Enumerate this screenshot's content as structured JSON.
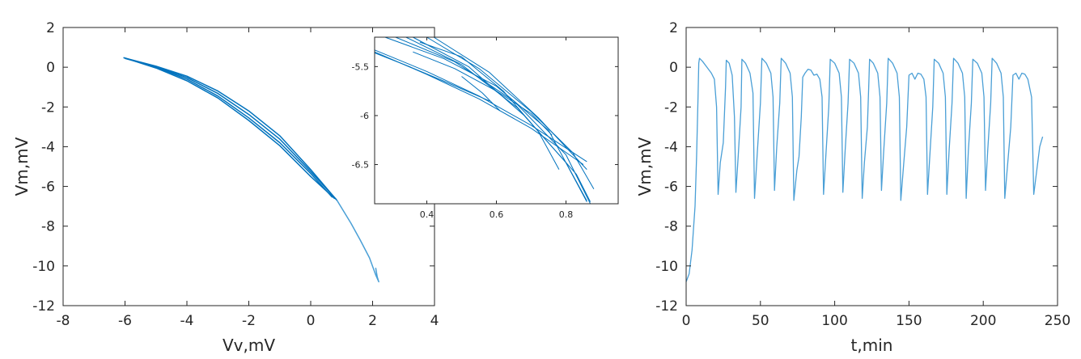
{
  "colors": {
    "line": "#0072bd",
    "line_light": "#4a9fd6",
    "axis": "#262626"
  },
  "chart_data": [
    {
      "type": "line",
      "xlabel": "Vv,mV",
      "ylabel": "Vm,mV",
      "xlim": [
        -8,
        4
      ],
      "ylim": [
        -12,
        2
      ],
      "xticks": [
        -8,
        -6,
        -4,
        -2,
        0,
        2,
        4
      ],
      "yticks": [
        -12,
        -10,
        -8,
        -6,
        -4,
        -2,
        0,
        2
      ],
      "series": [
        {
          "values": [
            [
              2.1,
              -10.1
            ],
            [
              2.15,
              -10.55
            ],
            [
              2.2,
              -10.8
            ],
            [
              2.1,
              -10.45
            ],
            [
              1.9,
              -9.6
            ],
            [
              1.6,
              -8.7
            ],
            [
              1.3,
              -7.85
            ],
            [
              0.85,
              -6.7
            ]
          ]
        },
        {
          "values": [
            [
              0.85,
              -6.7
            ],
            [
              0.0,
              -5.15
            ],
            [
              -1.0,
              -3.45
            ],
            [
              -2.0,
              -2.2
            ],
            [
              -3.0,
              -1.2
            ],
            [
              -4.0,
              -0.45
            ],
            [
              -5.0,
              0.05
            ],
            [
              -6.05,
              0.48
            ]
          ]
        },
        {
          "values": [
            [
              -6.05,
              0.48
            ],
            [
              -5.0,
              0.0
            ],
            [
              -4.0,
              -0.6
            ],
            [
              -3.0,
              -1.45
            ],
            [
              -2.0,
              -2.55
            ],
            [
              -1.0,
              -3.8
            ],
            [
              0.0,
              -5.35
            ],
            [
              0.7,
              -6.55
            ]
          ]
        },
        {
          "values": [
            [
              -6.0,
              0.46
            ],
            [
              -5.0,
              -0.04
            ],
            [
              -4.0,
              -0.68
            ],
            [
              -3.0,
              -1.55
            ],
            [
              -2.0,
              -2.68
            ],
            [
              -1.0,
              -3.95
            ],
            [
              0.0,
              -5.5
            ],
            [
              0.78,
              -6.62
            ]
          ]
        },
        {
          "values": [
            [
              -6.0,
              0.44
            ],
            [
              -5.0,
              0.02
            ],
            [
              -4.0,
              -0.52
            ],
            [
              -3.0,
              -1.32
            ],
            [
              -2.0,
              -2.38
            ],
            [
              -1.0,
              -3.62
            ],
            [
              0.0,
              -5.25
            ],
            [
              0.82,
              -6.65
            ]
          ]
        }
      ]
    },
    {
      "type": "line",
      "role": "inset",
      "xlim": [
        0.25,
        0.95
      ],
      "ylim": [
        -6.9,
        -5.2
      ],
      "xticks": [
        0.4,
        0.6,
        0.8
      ],
      "yticks": [
        -6.5,
        -6,
        -5.5
      ],
      "ytick_labels": [
        "-6.5",
        "-6",
        "-5.5"
      ],
      "series": [
        {
          "values": [
            [
              0.25,
              -5.33
            ],
            [
              0.4,
              -5.55
            ],
            [
              0.55,
              -5.8
            ],
            [
              0.7,
              -6.1
            ],
            [
              0.86,
              -6.47
            ]
          ]
        },
        {
          "values": [
            [
              0.25,
              -5.35
            ],
            [
              0.4,
              -5.58
            ],
            [
              0.55,
              -5.83
            ],
            [
              0.7,
              -6.13
            ],
            [
              0.85,
              -6.5
            ]
          ]
        },
        {
          "values": [
            [
              0.25,
              -5.36
            ],
            [
              0.35,
              -5.5
            ],
            [
              0.45,
              -5.65
            ],
            [
              0.58,
              -5.85
            ]
          ]
        },
        {
          "values": [
            [
              0.28,
              -5.2
            ],
            [
              0.45,
              -5.42
            ],
            [
              0.6,
              -5.7
            ],
            [
              0.75,
              -6.15
            ],
            [
              0.86,
              -6.88
            ]
          ]
        },
        {
          "values": [
            [
              0.31,
              -5.2
            ],
            [
              0.48,
              -5.45
            ],
            [
              0.65,
              -5.85
            ],
            [
              0.8,
              -6.4
            ],
            [
              0.87,
              -6.9
            ]
          ]
        },
        {
          "values": [
            [
              0.34,
              -5.2
            ],
            [
              0.5,
              -5.48
            ],
            [
              0.66,
              -5.92
            ],
            [
              0.8,
              -6.48
            ],
            [
              0.86,
              -6.87
            ]
          ]
        },
        {
          "values": [
            [
              0.36,
              -5.2
            ],
            [
              0.52,
              -5.5
            ],
            [
              0.68,
              -6.0
            ],
            [
              0.83,
              -6.6
            ],
            [
              0.87,
              -6.88
            ]
          ]
        },
        {
          "values": [
            [
              0.4,
              -5.2
            ],
            [
              0.55,
              -5.52
            ],
            [
              0.7,
              -5.96
            ],
            [
              0.82,
              -6.38
            ],
            [
              0.88,
              -6.75
            ]
          ]
        },
        {
          "values": [
            [
              0.42,
              -5.2
            ],
            [
              0.58,
              -5.56
            ],
            [
              0.72,
              -6.02
            ],
            [
              0.86,
              -6.55
            ]
          ]
        },
        {
          "values": [
            [
              0.36,
              -5.35
            ],
            [
              0.48,
              -5.52
            ],
            [
              0.6,
              -5.75
            ],
            [
              0.7,
              -5.98
            ],
            [
              0.76,
              -6.2
            ]
          ]
        },
        {
          "values": [
            [
              0.5,
              -5.6
            ],
            [
              0.56,
              -5.77
            ],
            [
              0.61,
              -5.95
            ]
          ]
        },
        {
          "values": [
            [
              0.38,
              -5.25
            ],
            [
              0.5,
              -5.4
            ],
            [
              0.62,
              -5.75
            ],
            [
              0.72,
              -6.16
            ],
            [
              0.78,
              -6.55
            ]
          ]
        }
      ]
    },
    {
      "type": "line",
      "xlabel": "t,min",
      "ylabel": "Vm,mV",
      "xlim": [
        0,
        250
      ],
      "ylim": [
        -12,
        2
      ],
      "xticks": [
        0,
        50,
        100,
        150,
        200,
        250
      ],
      "yticks": [
        -12,
        -10,
        -8,
        -6,
        -4,
        -2,
        0,
        2
      ],
      "series": [
        {
          "values": [
            [
              0,
              -10.8
            ],
            [
              2,
              -10.4
            ],
            [
              4,
              -9.2
            ],
            [
              6,
              -7.0
            ],
            [
              7,
              -4.5
            ],
            [
              8,
              -1.5
            ],
            [
              8.5,
              0.2
            ],
            [
              9,
              0.45
            ],
            [
              11,
              0.3
            ],
            [
              14,
              0.0
            ],
            [
              17,
              -0.3
            ],
            [
              19,
              -0.6
            ],
            [
              20.5,
              -2.0
            ],
            [
              21.5,
              -6.4
            ],
            [
              23,
              -4.8
            ],
            [
              25,
              -3.8
            ],
            [
              26.5,
              -1.0
            ],
            [
              27,
              0.35
            ],
            [
              29,
              0.2
            ],
            [
              31,
              -0.4
            ],
            [
              32.5,
              -2.5
            ],
            [
              33.5,
              -6.3
            ],
            [
              35,
              -4.5
            ],
            [
              37,
              -2.0
            ],
            [
              37.5,
              0.4
            ],
            [
              40,
              0.2
            ],
            [
              43,
              -0.3
            ],
            [
              45,
              -1.3
            ],
            [
              46,
              -6.6
            ],
            [
              48,
              -4.2
            ],
            [
              50,
              -1.8
            ],
            [
              51,
              0.45
            ],
            [
              54,
              0.2
            ],
            [
              57,
              -0.3
            ],
            [
              58.5,
              -1.5
            ],
            [
              59.5,
              -6.2
            ],
            [
              61,
              -4.0
            ],
            [
              63,
              -1.8
            ],
            [
              64,
              0.45
            ],
            [
              67,
              0.2
            ],
            [
              70,
              -0.3
            ],
            [
              71.5,
              -1.5
            ],
            [
              72.5,
              -6.7
            ],
            [
              74.5,
              -5.2
            ],
            [
              76,
              -4.5
            ],
            [
              77.5,
              -2.5
            ],
            [
              78.5,
              -0.5
            ],
            [
              80,
              -0.3
            ],
            [
              82,
              -0.1
            ],
            [
              84,
              -0.15
            ],
            [
              86,
              -0.4
            ],
            [
              88,
              -0.35
            ],
            [
              90,
              -0.6
            ],
            [
              91.5,
              -1.5
            ],
            [
              92.5,
              -6.4
            ],
            [
              94,
              -4.5
            ],
            [
              96,
              -2.0
            ],
            [
              97,
              0.4
            ],
            [
              100,
              0.2
            ],
            [
              103,
              -0.3
            ],
            [
              104.5,
              -1.5
            ],
            [
              105.5,
              -6.3
            ],
            [
              107,
              -4.2
            ],
            [
              109,
              -1.8
            ],
            [
              110,
              0.4
            ],
            [
              113,
              0.2
            ],
            [
              116,
              -0.3
            ],
            [
              117.5,
              -1.5
            ],
            [
              118.5,
              -6.6
            ],
            [
              120,
              -4.8
            ],
            [
              122,
              -3.0
            ],
            [
              123,
              -0.8
            ],
            [
              123.5,
              0.4
            ],
            [
              126,
              0.2
            ],
            [
              129,
              -0.3
            ],
            [
              130.5,
              -1.5
            ],
            [
              131.5,
              -6.2
            ],
            [
              133,
              -4.2
            ],
            [
              135,
              -1.8
            ],
            [
              136,
              0.45
            ],
            [
              139,
              0.2
            ],
            [
              142,
              -0.3
            ],
            [
              143.5,
              -1.5
            ],
            [
              144.5,
              -6.7
            ],
            [
              146.5,
              -4.8
            ],
            [
              148.5,
              -3.0
            ],
            [
              150,
              -0.4
            ],
            [
              152,
              -0.3
            ],
            [
              154,
              -0.6
            ],
            [
              156,
              -0.3
            ],
            [
              158,
              -0.35
            ],
            [
              160,
              -0.6
            ],
            [
              161.5,
              -1.5
            ],
            [
              162.5,
              -6.4
            ],
            [
              164,
              -4.5
            ],
            [
              166,
              -2.0
            ],
            [
              167,
              0.4
            ],
            [
              170,
              0.2
            ],
            [
              173,
              -0.3
            ],
            [
              174.5,
              -1.5
            ],
            [
              175.5,
              -6.4
            ],
            [
              177,
              -4.2
            ],
            [
              179,
              -1.8
            ],
            [
              180,
              0.45
            ],
            [
              183,
              0.2
            ],
            [
              186,
              -0.3
            ],
            [
              187.5,
              -1.5
            ],
            [
              188.5,
              -6.6
            ],
            [
              190,
              -4.2
            ],
            [
              192,
              -1.8
            ],
            [
              193,
              0.4
            ],
            [
              196,
              0.2
            ],
            [
              199,
              -0.3
            ],
            [
              200.5,
              -1.5
            ],
            [
              201.5,
              -6.2
            ],
            [
              203,
              -4.2
            ],
            [
              205,
              -1.8
            ],
            [
              206,
              0.45
            ],
            [
              209,
              0.2
            ],
            [
              212,
              -0.3
            ],
            [
              213.5,
              -1.5
            ],
            [
              214.5,
              -6.6
            ],
            [
              216.5,
              -4.8
            ],
            [
              218.5,
              -3.0
            ],
            [
              220,
              -0.4
            ],
            [
              222,
              -0.3
            ],
            [
              224,
              -0.6
            ],
            [
              226,
              -0.3
            ],
            [
              228,
              -0.35
            ],
            [
              230,
              -0.6
            ],
            [
              232.5,
              -1.5
            ],
            [
              234,
              -6.4
            ],
            [
              236,
              -5.2
            ],
            [
              238,
              -4.0
            ],
            [
              240,
              -3.5
            ]
          ]
        }
      ]
    }
  ]
}
